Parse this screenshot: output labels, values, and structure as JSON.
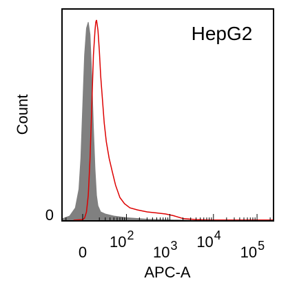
{
  "chart_data": {
    "type": "area",
    "title": "HepG2",
    "xlabel": "APC-A",
    "ylabel": "Count",
    "x_scale": "biexponential",
    "y_ticks": [
      {
        "value": 0,
        "label": "0"
      }
    ],
    "x_ticks": [
      {
        "value": 0,
        "label": "0",
        "exp": ""
      },
      {
        "value": 100,
        "label": "10",
        "exp": "2"
      },
      {
        "value": 1000,
        "label": "10",
        "exp": "3"
      },
      {
        "value": 10000,
        "label": "10",
        "exp": "4"
      },
      {
        "value": 100000,
        "label": "10",
        "exp": "5"
      }
    ],
    "grid": false,
    "series": [
      {
        "kind": "filled",
        "color": "#808080",
        "points": [
          [
            -60,
            0
          ],
          [
            -40,
            0.2
          ],
          [
            -25,
            0.8
          ],
          [
            -15,
            2
          ],
          [
            -8,
            6
          ],
          [
            -4,
            15
          ],
          [
            -2,
            30
          ],
          [
            0,
            55
          ],
          [
            2,
            80
          ],
          [
            4,
            93
          ],
          [
            6,
            96
          ],
          [
            8,
            90
          ],
          [
            10,
            70
          ],
          [
            12,
            45
          ],
          [
            14,
            25
          ],
          [
            16,
            12
          ],
          [
            18,
            7
          ],
          [
            22,
            4
          ],
          [
            30,
            3
          ],
          [
            50,
            2
          ],
          [
            100,
            1.2
          ],
          [
            300,
            0.5
          ],
          [
            1000,
            0.2
          ],
          [
            3000,
            0
          ]
        ]
      },
      {
        "kind": "line",
        "color": "#dd0000",
        "points": [
          [
            -10,
            0
          ],
          [
            0,
            0.3
          ],
          [
            2,
            1
          ],
          [
            4,
            4
          ],
          [
            6,
            12
          ],
          [
            8,
            30
          ],
          [
            10,
            55
          ],
          [
            12,
            80
          ],
          [
            14,
            92
          ],
          [
            15,
            96
          ],
          [
            16,
            97
          ],
          [
            18,
            92
          ],
          [
            20,
            82
          ],
          [
            22,
            70
          ],
          [
            25,
            58
          ],
          [
            28,
            47
          ],
          [
            32,
            38
          ],
          [
            38,
            30
          ],
          [
            45,
            24
          ],
          [
            55,
            17
          ],
          [
            70,
            11
          ],
          [
            90,
            8
          ],
          [
            120,
            6
          ],
          [
            180,
            5
          ],
          [
            300,
            4
          ],
          [
            500,
            3.5
          ],
          [
            800,
            3
          ],
          [
            1200,
            2.2
          ],
          [
            2000,
            0.8
          ],
          [
            4000,
            0.3
          ],
          [
            8000,
            0.1
          ],
          [
            300000,
            0.1
          ]
        ]
      }
    ]
  }
}
